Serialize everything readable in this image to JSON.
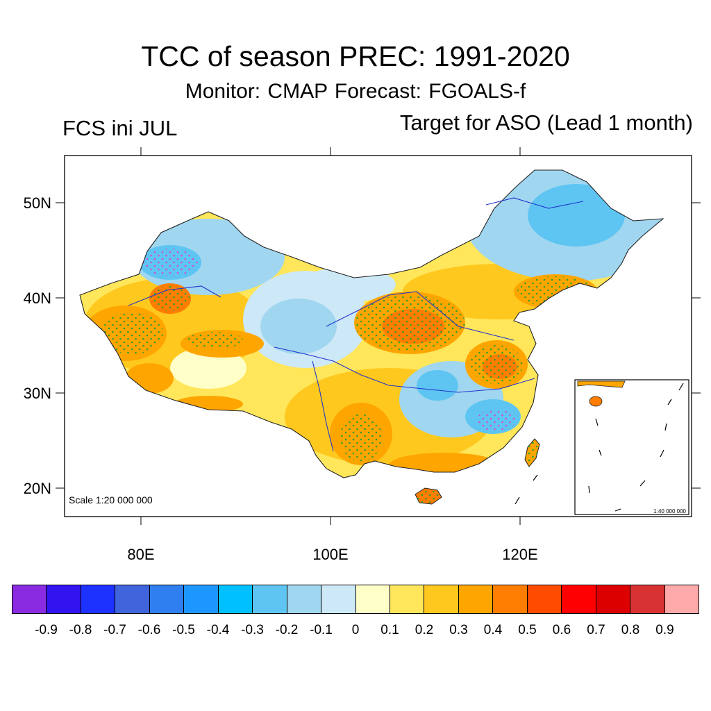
{
  "title": "TCC of season PREC: 1991-2020",
  "subtitle": "Monitor: CMAP   Forecast: FGOALS-f",
  "left_label": "FCS ini JUL",
  "right_label": "Target for ASO (Lead 1 month)",
  "lat_labels": [
    "50N",
    "40N",
    "30N",
    "20N"
  ],
  "lon_labels": [
    "80E",
    "100E",
    "120E"
  ],
  "scale_text": "Scale 1:20 000 000",
  "inset_scale_text": "1:40 000 000",
  "colorbar": {
    "colors": [
      "#8a2be2",
      "#3214f0",
      "#1e32ff",
      "#4064dc",
      "#2f7ff0",
      "#1e96ff",
      "#00c0ff",
      "#5ec5f2",
      "#a0d6f0",
      "#cde8f6",
      "#ffffc8",
      "#ffe65a",
      "#ffc81e",
      "#ffa500",
      "#ff7d00",
      "#ff4b00",
      "#ff0000",
      "#dc0000",
      "#d83232",
      "#ffaaaa"
    ],
    "labels": [
      "-0.9",
      "-0.8",
      "-0.7",
      "-0.6",
      "-0.5",
      "-0.4",
      "-0.3",
      "-0.2",
      "-0.1",
      "0",
      "0.1",
      "0.2",
      "0.3",
      "0.4",
      "0.5",
      "0.6",
      "0.7",
      "0.8",
      "0.9"
    ]
  }
}
